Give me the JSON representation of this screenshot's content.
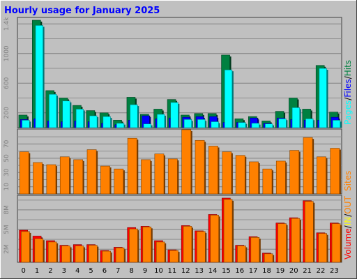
{
  "title": "Hourly usage for January 2025",
  "colors": {
    "background": "#c0c0c0",
    "title": "#0000ff",
    "pages": "#00ffff",
    "files": "#0000ff",
    "hits": "#008040",
    "sites": "#ff8000",
    "volume": "#ff0000",
    "in": "#ffff00",
    "out": "#ff8000",
    "axis_label": "#000000",
    "tick_label": "#808080"
  },
  "chart_data": [
    {
      "type": "bar",
      "panel": "top",
      "categories": [
        "0",
        "1",
        "2",
        "3",
        "4",
        "5",
        "6",
        "7",
        "8",
        "9",
        "10",
        "11",
        "12",
        "13",
        "14",
        "15",
        "16",
        "17",
        "18",
        "19",
        "20",
        "21",
        "22",
        "23"
      ],
      "ylim": [
        0,
        1450
      ],
      "ytick_labels": [
        "200",
        "600",
        "1000",
        "1.4k"
      ],
      "ytick_values": [
        200,
        600,
        1000,
        1400
      ],
      "legend": [
        {
          "label": "Pages",
          "color_key": "pages"
        },
        {
          "label": "/",
          "color_key": "axis_label"
        },
        {
          "label": "Files",
          "color_key": "files"
        },
        {
          "label": "/",
          "color_key": "axis_label"
        },
        {
          "label": "Hits",
          "color_key": "hits"
        }
      ],
      "series": [
        {
          "name": "Hits",
          "color_key": "hits",
          "values": [
            170,
            1450,
            500,
            400,
            300,
            230,
            200,
            100,
            410,
            180,
            250,
            380,
            170,
            190,
            190,
            980,
            120,
            150,
            90,
            220,
            400,
            250,
            840,
            210
          ]
        },
        {
          "name": "Files",
          "color_key": "files",
          "values": [
            110,
            120,
            90,
            80,
            90,
            80,
            60,
            40,
            100,
            160,
            120,
            130,
            140,
            150,
            150,
            70,
            70,
            130,
            60,
            130,
            110,
            100,
            100,
            140
          ]
        },
        {
          "name": "Pages",
          "color_key": "pages",
          "values": [
            100,
            1380,
            450,
            360,
            250,
            160,
            150,
            60,
            310,
            50,
            180,
            340,
            110,
            110,
            80,
            780,
            70,
            60,
            50,
            120,
            270,
            120,
            800,
            100
          ]
        }
      ]
    },
    {
      "type": "bar",
      "panel": "middle",
      "categories": [
        "0",
        "1",
        "2",
        "3",
        "4",
        "5",
        "6",
        "7",
        "8",
        "9",
        "10",
        "11",
        "12",
        "13",
        "14",
        "15",
        "16",
        "17",
        "18",
        "19",
        "20",
        "21",
        "22",
        "23"
      ],
      "ylim": [
        0,
        87
      ],
      "ytick_labels": [
        "10",
        "30",
        "50",
        "70"
      ],
      "ytick_values": [
        10,
        30,
        50,
        70
      ],
      "legend": [
        {
          "label": "Sites",
          "color_key": "sites"
        }
      ],
      "series": [
        {
          "name": "Sites",
          "color_key": "sites",
          "values": [
            59,
            44,
            41,
            52,
            48,
            62,
            39,
            35,
            78,
            48,
            56,
            49,
            90,
            75,
            67,
            59,
            54,
            45,
            35,
            46,
            61,
            79,
            52,
            64
          ]
        }
      ]
    },
    {
      "type": "bar",
      "panel": "bottom",
      "categories": [
        "0",
        "1",
        "2",
        "3",
        "4",
        "5",
        "6",
        "7",
        "8",
        "9",
        "10",
        "11",
        "12",
        "13",
        "14",
        "15",
        "16",
        "17",
        "18",
        "19",
        "20",
        "21",
        "22",
        "23"
      ],
      "ylim": [
        0,
        9.8
      ],
      "ytick_labels": [
        "2M",
        "5M",
        "8M"
      ],
      "ytick_values": [
        2,
        5,
        8
      ],
      "legend": [
        {
          "label": "Volume",
          "color_key": "volume"
        },
        {
          "label": "/",
          "color_key": "axis_label"
        },
        {
          "label": "IN",
          "color_key": "in"
        },
        {
          "label": "/",
          "color_key": "axis_label"
        },
        {
          "label": "OUT",
          "color_key": "out"
        }
      ],
      "series": [
        {
          "name": "Volume",
          "color_key": "volume",
          "values": [
            4.9,
            4.0,
            3.3,
            2.6,
            2.7,
            2.7,
            1.8,
            2.3,
            5.3,
            5.5,
            3.3,
            1.9,
            5.6,
            4.8,
            7.3,
            9.8,
            2.6,
            3.9,
            1.4,
            6.0,
            6.8,
            9.4,
            4.5,
            6.0
          ]
        },
        {
          "name": "Out",
          "color_key": "out",
          "values": [
            4.7,
            3.6,
            3.1,
            2.5,
            2.5,
            2.6,
            1.7,
            2.2,
            5.1,
            5.4,
            3.1,
            1.8,
            5.5,
            4.7,
            7.2,
            9.6,
            2.5,
            3.8,
            1.3,
            5.9,
            6.7,
            9.3,
            4.4,
            5.9
          ]
        }
      ]
    }
  ]
}
